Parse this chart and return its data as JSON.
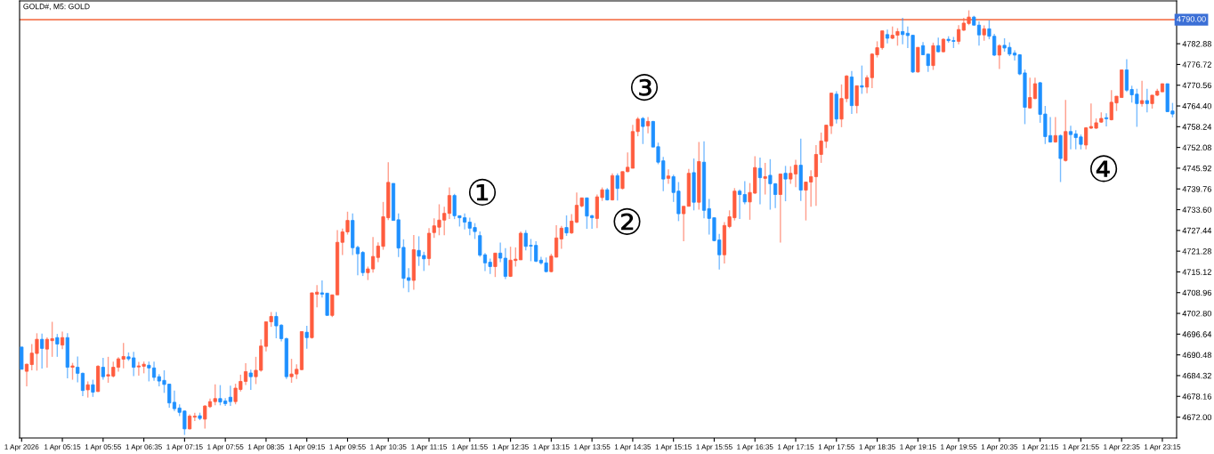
{
  "chart_data": {
    "type": "candlestick",
    "title": "GOLD#, M5: GOLD",
    "x": [
      "2026-04-01T04:35",
      "2026-04-01T04:40",
      "2026-04-01T04:45",
      "2026-04-01T04:50",
      "2026-04-01T04:55",
      "2026-04-01T05:00",
      "2026-04-01T05:05",
      "2026-04-01T05:10",
      "2026-04-01T05:15",
      "2026-04-01T05:20",
      "2026-04-01T05:25",
      "2026-04-01T05:30",
      "2026-04-01T05:35",
      "2026-04-01T05:40",
      "2026-04-01T05:45",
      "2026-04-01T05:50",
      "2026-04-01T05:55",
      "2026-04-01T06:00",
      "2026-04-01T06:05",
      "2026-04-01T06:10",
      "2026-04-01T06:15",
      "2026-04-01T06:20",
      "2026-04-01T06:25",
      "2026-04-01T06:30",
      "2026-04-01T06:35",
      "2026-04-01T06:40",
      "2026-04-01T06:45",
      "2026-04-01T06:50",
      "2026-04-01T06:55",
      "2026-04-01T07:00",
      "2026-04-01T07:05",
      "2026-04-01T07:10",
      "2026-04-01T07:15",
      "2026-04-01T07:20",
      "2026-04-01T07:25",
      "2026-04-01T07:30",
      "2026-04-01T07:35",
      "2026-04-01T07:40",
      "2026-04-01T07:45",
      "2026-04-01T07:50",
      "2026-04-01T07:55",
      "2026-04-01T08:00",
      "2026-04-01T08:05",
      "2026-04-01T08:10",
      "2026-04-01T08:15",
      "2026-04-01T08:20",
      "2026-04-01T08:25",
      "2026-04-01T08:30",
      "2026-04-01T08:35",
      "2026-04-01T08:40",
      "2026-04-01T08:45",
      "2026-04-01T08:50",
      "2026-04-01T08:55",
      "2026-04-01T09:00",
      "2026-04-01T09:05",
      "2026-04-01T09:10",
      "2026-04-01T09:15",
      "2026-04-01T09:20",
      "2026-04-01T09:25",
      "2026-04-01T09:30",
      "2026-04-01T09:35",
      "2026-04-01T09:40",
      "2026-04-01T09:45",
      "2026-04-01T09:50",
      "2026-04-01T09:55",
      "2026-04-01T10:00",
      "2026-04-01T10:05",
      "2026-04-01T10:10",
      "2026-04-01T10:15",
      "2026-04-01T10:20",
      "2026-04-01T10:25",
      "2026-04-01T10:30",
      "2026-04-01T10:35",
      "2026-04-01T10:40",
      "2026-04-01T10:45",
      "2026-04-01T10:50",
      "2026-04-01T10:55",
      "2026-04-01T11:00",
      "2026-04-01T11:05",
      "2026-04-01T11:10",
      "2026-04-01T11:15",
      "2026-04-01T11:20",
      "2026-04-01T11:25",
      "2026-04-01T11:30",
      "2026-04-01T11:35",
      "2026-04-01T11:40",
      "2026-04-01T11:45",
      "2026-04-01T11:50",
      "2026-04-01T11:55",
      "2026-04-01T12:00",
      "2026-04-01T12:05",
      "2026-04-01T12:10",
      "2026-04-01T12:15",
      "2026-04-01T12:20",
      "2026-04-01T12:25",
      "2026-04-01T12:30",
      "2026-04-01T12:35",
      "2026-04-01T12:40",
      "2026-04-01T12:45",
      "2026-04-01T12:50",
      "2026-04-01T12:55",
      "2026-04-01T13:00",
      "2026-04-01T13:05",
      "2026-04-01T13:10",
      "2026-04-01T13:15",
      "2026-04-01T13:20",
      "2026-04-01T13:25",
      "2026-04-01T13:30",
      "2026-04-01T13:35",
      "2026-04-01T13:40",
      "2026-04-01T13:45",
      "2026-04-01T13:50",
      "2026-04-01T13:55",
      "2026-04-01T14:00",
      "2026-04-01T14:05",
      "2026-04-01T14:10",
      "2026-04-01T14:15",
      "2026-04-01T14:20",
      "2026-04-01T14:25",
      "2026-04-01T14:30",
      "2026-04-01T14:35",
      "2026-04-01T14:40",
      "2026-04-01T14:45",
      "2026-04-01T14:50",
      "2026-04-01T14:55",
      "2026-04-01T15:00",
      "2026-04-01T15:05",
      "2026-04-01T15:10",
      "2026-04-01T15:15",
      "2026-04-01T15:20",
      "2026-04-01T15:25",
      "2026-04-01T15:30",
      "2026-04-01T15:35",
      "2026-04-01T15:40",
      "2026-04-01T15:45",
      "2026-04-01T15:50",
      "2026-04-01T15:55",
      "2026-04-01T16:00",
      "2026-04-01T16:05",
      "2026-04-01T16:10",
      "2026-04-01T16:15",
      "2026-04-01T16:20",
      "2026-04-01T16:25",
      "2026-04-01T16:30",
      "2026-04-01T16:35",
      "2026-04-01T16:40",
      "2026-04-01T16:45",
      "2026-04-01T16:50",
      "2026-04-01T16:55",
      "2026-04-01T17:00",
      "2026-04-01T17:05",
      "2026-04-01T17:10",
      "2026-04-01T17:15",
      "2026-04-01T17:20",
      "2026-04-01T17:25",
      "2026-04-01T17:30",
      "2026-04-01T17:35",
      "2026-04-01T17:40",
      "2026-04-01T17:45",
      "2026-04-01T17:50",
      "2026-04-01T17:55",
      "2026-04-01T18:00",
      "2026-04-01T18:05",
      "2026-04-01T18:10",
      "2026-04-01T18:15",
      "2026-04-01T18:20",
      "2026-04-01T18:25",
      "2026-04-01T18:30",
      "2026-04-01T18:35",
      "2026-04-01T18:40",
      "2026-04-01T18:45",
      "2026-04-01T18:50",
      "2026-04-01T18:55",
      "2026-04-01T19:00",
      "2026-04-01T19:05",
      "2026-04-01T19:10",
      "2026-04-01T19:15",
      "2026-04-01T19:20",
      "2026-04-01T19:25",
      "2026-04-01T19:30",
      "2026-04-01T19:35",
      "2026-04-01T19:40",
      "2026-04-01T19:45",
      "2026-04-01T19:50",
      "2026-04-01T19:55",
      "2026-04-01T20:00",
      "2026-04-01T20:05",
      "2026-04-01T20:10",
      "2026-04-01T20:15",
      "2026-04-01T20:20",
      "2026-04-01T20:25",
      "2026-04-01T20:30",
      "2026-04-01T20:35",
      "2026-04-01T20:40",
      "2026-04-01T20:45",
      "2026-04-01T20:50",
      "2026-04-01T20:55",
      "2026-04-01T21:00",
      "2026-04-01T21:05",
      "2026-04-01T21:10",
      "2026-04-01T21:15",
      "2026-04-01T21:20",
      "2026-04-01T21:25",
      "2026-04-01T21:30",
      "2026-04-01T21:35",
      "2026-04-01T21:40",
      "2026-04-01T21:45",
      "2026-04-01T21:50",
      "2026-04-01T21:55",
      "2026-04-01T22:00",
      "2026-04-01T22:05",
      "2026-04-01T22:10",
      "2026-04-01T22:15",
      "2026-04-01T22:20",
      "2026-04-01T22:25",
      "2026-04-01T22:30",
      "2026-04-01T22:35",
      "2026-04-01T22:40",
      "2026-04-01T22:45",
      "2026-04-01T22:50",
      "2026-04-01T22:55",
      "2026-04-01T23:00",
      "2026-04-01T23:05",
      "2026-04-01T23:10",
      "2026-04-01T23:15",
      "2026-04-01T23:20",
      "2026-04-01T23:25"
    ],
    "ohlc": [
      [
        4692.8,
        4692.8,
        4686.2,
        4686.2
      ],
      [
        4685.6,
        4687.9,
        4681.1,
        4687.7
      ],
      [
        4687.6,
        4693.7,
        4685.9,
        4691.0
      ],
      [
        4690.9,
        4696.9,
        4685.8,
        4695.1
      ],
      [
        4695.1,
        4696.8,
        4686.4,
        4692.4
      ],
      [
        4692.2,
        4695.7,
        4686.7,
        4695.1
      ],
      [
        4694.7,
        4700.3,
        4689.9,
        4695.3
      ],
      [
        4695.6,
        4696.7,
        4689.9,
        4693.7
      ],
      [
        4693.4,
        4697.4,
        4692.2,
        4695.6
      ],
      [
        4695.6,
        4696.9,
        4683.5,
        4686.8
      ],
      [
        4686.8,
        4688.1,
        4683.1,
        4687.2
      ],
      [
        4686.8,
        4690.0,
        4682.3,
        4685.0
      ],
      [
        4685.0,
        4685.2,
        4678.2,
        4679.9
      ],
      [
        4680.1,
        4682.6,
        4677.8,
        4681.6
      ],
      [
        4681.6,
        4683.1,
        4678.0,
        4679.4
      ],
      [
        4679.6,
        4687.4,
        4679.5,
        4687.1
      ],
      [
        4686.8,
        4689.6,
        4683.1,
        4684.0
      ],
      [
        4684.2,
        4689.9,
        4682.2,
        4684.6
      ],
      [
        4684.2,
        4688.5,
        4683.8,
        4686.8
      ],
      [
        4686.8,
        4689.8,
        4685.5,
        4689.3
      ],
      [
        4689.2,
        4694.0,
        4686.5,
        4690.0
      ],
      [
        4689.9,
        4691.2,
        4688.7,
        4689.3
      ],
      [
        4689.6,
        4691.4,
        4684.2,
        4686.8
      ],
      [
        4686.9,
        4688.4,
        4684.3,
        4687.2
      ],
      [
        4687.1,
        4688.5,
        4685.0,
        4687.7
      ],
      [
        4687.4,
        4688.5,
        4682.6,
        4686.6
      ],
      [
        4686.6,
        4688.5,
        4682.8,
        4683.8
      ],
      [
        4684.0,
        4684.8,
        4681.1,
        4682.7
      ],
      [
        4682.9,
        4685.9,
        4679.2,
        4681.7
      ],
      [
        4681.8,
        4681.9,
        4674.8,
        4676.2
      ],
      [
        4676.4,
        4679.9,
        4673.8,
        4674.5
      ],
      [
        4674.7,
        4675.8,
        4672.3,
        4673.4
      ],
      [
        4673.8,
        4674.0,
        4666.7,
        4668.5
      ],
      [
        4668.5,
        4672.8,
        4668.3,
        4672.3
      ],
      [
        4672.0,
        4673.3,
        4670.8,
        4672.3
      ],
      [
        4672.4,
        4673.3,
        4671.1,
        4671.6
      ],
      [
        4671.4,
        4675.5,
        4668.6,
        4675.3
      ],
      [
        4675.1,
        4677.5,
        4674.7,
        4676.6
      ],
      [
        4676.6,
        4681.7,
        4675.5,
        4677.5
      ],
      [
        4677.5,
        4681.5,
        4675.5,
        4676.5
      ],
      [
        4676.8,
        4677.6,
        4675.3,
        4676.0
      ],
      [
        4677.9,
        4681.3,
        4675.3,
        4676.6
      ],
      [
        4676.6,
        4681.9,
        4675.8,
        4680.6
      ],
      [
        4680.2,
        4684.6,
        4679.6,
        4682.6
      ],
      [
        4682.6,
        4688.0,
        4681.5,
        4685.5
      ],
      [
        4685.1,
        4686.1,
        4680.1,
        4684.0
      ],
      [
        4684.0,
        4689.9,
        4681.8,
        4685.9
      ],
      [
        4685.9,
        4695.1,
        4685.5,
        4693.1
      ],
      [
        4693.0,
        4700.3,
        4691.5,
        4700.3
      ],
      [
        4700.3,
        4703.2,
        4698.8,
        4701.9
      ],
      [
        4701.9,
        4703.2,
        4695.4,
        4699.1
      ],
      [
        4699.3,
        4699.6,
        4694.5,
        4695.3
      ],
      [
        4695.3,
        4695.6,
        4683.3,
        4684.0
      ],
      [
        4684.0,
        4689.3,
        4682.2,
        4684.8
      ],
      [
        4684.8,
        4687.7,
        4683.3,
        4686.2
      ],
      [
        4686.1,
        4697.4,
        4685.9,
        4697.4
      ],
      [
        4697.2,
        4699.1,
        4692.3,
        4695.6
      ],
      [
        4695.6,
        4708.9,
        4695.3,
        4708.9
      ],
      [
        4708.5,
        4711.2,
        4704.6,
        4709.1
      ],
      [
        4708.9,
        4712.6,
        4707.5,
        4708.5
      ],
      [
        4708.8,
        4708.8,
        4702.2,
        4702.2
      ],
      [
        4702.2,
        4708.3,
        4701.7,
        4708.3
      ],
      [
        4708.3,
        4727.5,
        4708.3,
        4723.9
      ],
      [
        4723.9,
        4728.0,
        4720.1,
        4727.0
      ],
      [
        4727.0,
        4733.0,
        4726.2,
        4730.4
      ],
      [
        4730.4,
        4732.5,
        4720.1,
        4722.3
      ],
      [
        4722.4,
        4722.9,
        4714.1,
        4720.5
      ],
      [
        4720.9,
        4721.3,
        4713.9,
        4714.9
      ],
      [
        4714.9,
        4716.7,
        4712.7,
        4716.0
      ],
      [
        4716.0,
        4725.5,
        4714.9,
        4719.7
      ],
      [
        4719.4,
        4723.9,
        4718.0,
        4722.8
      ],
      [
        4722.7,
        4735.9,
        4721.7,
        4731.5
      ],
      [
        4731.2,
        4747.7,
        4730.5,
        4741.7
      ],
      [
        4741.4,
        4741.4,
        4730.4,
        4730.4
      ],
      [
        4730.6,
        4732.5,
        4719.5,
        4722.2
      ],
      [
        4722.4,
        4724.8,
        4710.3,
        4713.2
      ],
      [
        4713.4,
        4716.2,
        4709.1,
        4712.6
      ],
      [
        4712.6,
        4726.1,
        4709.8,
        4721.7
      ],
      [
        4721.5,
        4725.7,
        4716.9,
        4719.8
      ],
      [
        4720.0,
        4721.1,
        4715.4,
        4719.0
      ],
      [
        4719.1,
        4728.1,
        4717.0,
        4726.6
      ],
      [
        4726.8,
        4731.0,
        4725.2,
        4728.8
      ],
      [
        4728.4,
        4735.2,
        4726.0,
        4730.5
      ],
      [
        4730.5,
        4734.5,
        4726.0,
        4732.5
      ],
      [
        4732.5,
        4740.2,
        4730.8,
        4737.8
      ],
      [
        4737.8,
        4738.3,
        4730.8,
        4731.8
      ],
      [
        4731.8,
        4731.8,
        4728.6,
        4731.2
      ],
      [
        4731.2,
        4732.5,
        4727.7,
        4729.9
      ],
      [
        4729.9,
        4731.2,
        4726.0,
        4728.1
      ],
      [
        4728.3,
        4729.6,
        4724.9,
        4727.1
      ],
      [
        4725.9,
        4727.1,
        4719.6,
        4720.1
      ],
      [
        4720.2,
        4720.7,
        4715.4,
        4717.8
      ],
      [
        4718.0,
        4719.1,
        4714.5,
        4716.7
      ],
      [
        4716.7,
        4720.7,
        4713.6,
        4720.7
      ],
      [
        4720.7,
        4723.8,
        4718.0,
        4719.2
      ],
      [
        4719.2,
        4722.2,
        4713.0,
        4713.8
      ],
      [
        4713.8,
        4722.6,
        4713.6,
        4718.6
      ],
      [
        4718.5,
        4722.4,
        4716.7,
        4718.9
      ],
      [
        4718.7,
        4727.1,
        4718.7,
        4726.6
      ],
      [
        4726.6,
        4727.5,
        4721.5,
        4722.7
      ],
      [
        4723.0,
        4724.9,
        4718.3,
        4722.8
      ],
      [
        4723.0,
        4724.2,
        4718.0,
        4718.3
      ],
      [
        4718.6,
        4719.6,
        4717.3,
        4717.8
      ],
      [
        4717.8,
        4719.4,
        4715.0,
        4715.2
      ],
      [
        4715.2,
        4720.5,
        4715.0,
        4719.8
      ],
      [
        4719.5,
        4729.0,
        4719.4,
        4725.2
      ],
      [
        4724.9,
        4728.8,
        4722.0,
        4728.1
      ],
      [
        4728.3,
        4731.9,
        4725.8,
        4726.7
      ],
      [
        4726.7,
        4732.3,
        4726.4,
        4730.2
      ],
      [
        4729.9,
        4738.7,
        4729.6,
        4734.9
      ],
      [
        4734.7,
        4737.1,
        4734.3,
        4737.1
      ],
      [
        4737.1,
        4737.1,
        4727.9,
        4731.7
      ],
      [
        4731.8,
        4732.1,
        4727.9,
        4731.2
      ],
      [
        4731.0,
        4738.1,
        4728.1,
        4737.4
      ],
      [
        4737.2,
        4740.2,
        4736.2,
        4739.5
      ],
      [
        4739.5,
        4740.0,
        4736.3,
        4736.5
      ],
      [
        4736.5,
        4744.4,
        4736.3,
        4743.7
      ],
      [
        4743.7,
        4744.4,
        4736.3,
        4739.9
      ],
      [
        4739.9,
        4744.9,
        4739.6,
        4744.9
      ],
      [
        4744.9,
        4750.6,
        4744.7,
        4746.2
      ],
      [
        4745.9,
        4758.8,
        4745.9,
        4756.8
      ],
      [
        4756.8,
        4761.1,
        4755.4,
        4760.5
      ],
      [
        4760.7,
        4761.1,
        4753.1,
        4758.3
      ],
      [
        4758.5,
        4761.1,
        4756.3,
        4759.8
      ],
      [
        4759.8,
        4760.0,
        4752.2,
        4752.2
      ],
      [
        4752.3,
        4753.5,
        4747.1,
        4747.7
      ],
      [
        4748.1,
        4749.3,
        4739.1,
        4742.7
      ],
      [
        4742.9,
        4745.6,
        4741.3,
        4743.6
      ],
      [
        4743.4,
        4744.0,
        4735.9,
        4738.7
      ],
      [
        4739.1,
        4741.8,
        4730.2,
        4732.4
      ],
      [
        4732.4,
        4734.6,
        4724.2,
        4734.6
      ],
      [
        4734.6,
        4745.7,
        4734.6,
        4744.4
      ],
      [
        4744.6,
        4748.8,
        4733.4,
        4735.8
      ],
      [
        4735.8,
        4753.7,
        4733.6,
        4747.9
      ],
      [
        4747.7,
        4753.9,
        4731.0,
        4733.4
      ],
      [
        4733.9,
        4736.8,
        4726.2,
        4731.0
      ],
      [
        4731.2,
        4731.2,
        4724.2,
        4724.4
      ],
      [
        4724.6,
        4726.4,
        4715.8,
        4720.2
      ],
      [
        4720.2,
        4729.9,
        4717.6,
        4728.9
      ],
      [
        4728.6,
        4733.4,
        4728.1,
        4731.5
      ],
      [
        4731.2,
        4740.0,
        4730.4,
        4739.1
      ],
      [
        4739.1,
        4739.6,
        4730.8,
        4738.1
      ],
      [
        4738.1,
        4742.1,
        4735.2,
        4735.9
      ],
      [
        4735.9,
        4741.5,
        4730.6,
        4738.7
      ],
      [
        4738.5,
        4749.5,
        4738.3,
        4746.1
      ],
      [
        4745.9,
        4749.1,
        4735.2,
        4743.1
      ],
      [
        4742.9,
        4747.5,
        4738.1,
        4743.4
      ],
      [
        4743.8,
        4748.6,
        4733.6,
        4741.3
      ],
      [
        4741.3,
        4741.5,
        4734.1,
        4738.1
      ],
      [
        4738.1,
        4744.2,
        4723.8,
        4744.2
      ],
      [
        4744.4,
        4746.6,
        4736.1,
        4742.7
      ],
      [
        4742.7,
        4746.5,
        4741.3,
        4744.4
      ],
      [
        4744.2,
        4748.4,
        4740.3,
        4746.8
      ],
      [
        4746.8,
        4754.7,
        4736.2,
        4739.4
      ],
      [
        4739.4,
        4741.8,
        4730.4,
        4741.8
      ],
      [
        4741.8,
        4745.3,
        4734.5,
        4743.4
      ],
      [
        4743.4,
        4752.8,
        4734.7,
        4750.0
      ],
      [
        4750.0,
        4756.5,
        4747.5,
        4754.0
      ],
      [
        4753.9,
        4758.7,
        4751.9,
        4758.7
      ],
      [
        4758.5,
        4768.4,
        4756.1,
        4768.2
      ],
      [
        4767.9,
        4768.8,
        4759.2,
        4760.5
      ],
      [
        4760.5,
        4770.8,
        4758.1,
        4766.6
      ],
      [
        4766.6,
        4773.5,
        4765.5,
        4773.3
      ],
      [
        4773.0,
        4774.8,
        4762.0,
        4764.5
      ],
      [
        4764.5,
        4770.4,
        4762.2,
        4770.4
      ],
      [
        4770.4,
        4776.4,
        4768.0,
        4770.0
      ],
      [
        4770.0,
        4773.5,
        4768.2,
        4772.8
      ],
      [
        4772.8,
        4780.1,
        4769.7,
        4779.8
      ],
      [
        4779.6,
        4783.6,
        4778.8,
        4781.7
      ],
      [
        4781.7,
        4786.7,
        4781.1,
        4786.7
      ],
      [
        4785.6,
        4787.1,
        4783.0,
        4784.5
      ],
      [
        4784.5,
        4788.0,
        4784.2,
        4785.4
      ],
      [
        4785.4,
        4787.5,
        4782.3,
        4786.5
      ],
      [
        4786.5,
        4790.6,
        4782.7,
        4785.6
      ],
      [
        4786.0,
        4788.0,
        4781.6,
        4785.3
      ],
      [
        4785.4,
        4785.4,
        4774.2,
        4774.5
      ],
      [
        4774.5,
        4781.8,
        4774.3,
        4781.8
      ],
      [
        4782.3,
        4783.4,
        4779.5,
        4779.6
      ],
      [
        4779.8,
        4779.8,
        4774.5,
        4776.4
      ],
      [
        4776.4,
        4783.2,
        4775.1,
        4782.3
      ],
      [
        4782.3,
        4784.7,
        4780.3,
        4780.5
      ],
      [
        4780.5,
        4784.5,
        4780.3,
        4784.2
      ],
      [
        4784.2,
        4785.1,
        4783.2,
        4783.8
      ],
      [
        4783.8,
        4784.9,
        4781.6,
        4783.6
      ],
      [
        4783.6,
        4788.4,
        4782.7,
        4787.1
      ],
      [
        4786.9,
        4790.6,
        4786.7,
        4789.0
      ],
      [
        4788.9,
        4792.8,
        4788.4,
        4790.8
      ],
      [
        4790.8,
        4791.2,
        4788.3,
        4788.4
      ],
      [
        4788.4,
        4789.5,
        4782.3,
        4785.5
      ],
      [
        4785.5,
        4788.3,
        4783.8,
        4787.3
      ],
      [
        4787.3,
        4789.8,
        4784.2,
        4785.1
      ],
      [
        4785.1,
        4785.8,
        4779.2,
        4779.5
      ],
      [
        4779.5,
        4782.7,
        4775.4,
        4782.3
      ],
      [
        4782.4,
        4784.5,
        4780.5,
        4781.6
      ],
      [
        4781.8,
        4783.3,
        4779.2,
        4779.8
      ],
      [
        4780.1,
        4780.9,
        4777.9,
        4779.5
      ],
      [
        4779.6,
        4779.8,
        4773.5,
        4773.9
      ],
      [
        4774.2,
        4775.2,
        4759.0,
        4764.0
      ],
      [
        4763.8,
        4772.8,
        4763.6,
        4766.9
      ],
      [
        4766.6,
        4772.8,
        4766.4,
        4771.0
      ],
      [
        4771.3,
        4771.5,
        4759.4,
        4761.9
      ],
      [
        4762.0,
        4764.4,
        4753.1,
        4755.3
      ],
      [
        4755.6,
        4761.1,
        4753.5,
        4753.7
      ],
      [
        4753.7,
        4761.1,
        4753.5,
        4755.6
      ],
      [
        4755.6,
        4755.9,
        4741.8,
        4748.8
      ],
      [
        4748.2,
        4766.2,
        4747.9,
        4756.8
      ],
      [
        4756.8,
        4758.5,
        4751.5,
        4755.9
      ],
      [
        4756.1,
        4757.2,
        4751.5,
        4755.0
      ],
      [
        4755.2,
        4755.9,
        4751.5,
        4753.0
      ],
      [
        4752.8,
        4758.1,
        4751.5,
        4757.9
      ],
      [
        4757.8,
        4765.1,
        4757.6,
        4758.3
      ],
      [
        4757.8,
        4760.7,
        4757.6,
        4759.4
      ],
      [
        4759.6,
        4762.5,
        4759.4,
        4760.7
      ],
      [
        4760.9,
        4762.2,
        4758.3,
        4760.6
      ],
      [
        4760.3,
        4769.1,
        4760.1,
        4765.5
      ],
      [
        4765.3,
        4767.3,
        4762.9,
        4767.3
      ],
      [
        4766.9,
        4775.1,
        4766.9,
        4775.1
      ],
      [
        4775.1,
        4778.3,
        4768.6,
        4769.1
      ],
      [
        4769.3,
        4770.4,
        4765.4,
        4767.7
      ],
      [
        4767.9,
        4769.5,
        4758.2,
        4765.1
      ],
      [
        4765.1,
        4771.9,
        4764.2,
        4766.0
      ],
      [
        4766.0,
        4769.5,
        4762.5,
        4765.1
      ],
      [
        4765.1,
        4767.6,
        4763.6,
        4767.6
      ],
      [
        4767.6,
        4769.5,
        4767.3,
        4768.8
      ],
      [
        4768.6,
        4771.0,
        4768.6,
        4771.0
      ],
      [
        4771.0,
        4771.0,
        4762.7,
        4762.7
      ],
      [
        4762.9,
        4765.3,
        4761.0,
        4762.0
      ]
    ],
    "colors": [
      "#1e90ff",
      "#ff5c3e",
      "#ff5c3e",
      "#ff5c3e",
      "#1e90ff",
      "#ff5c3e",
      "#ff5c3e",
      "#1e90ff",
      "#ff5c3e",
      "#1e90ff",
      "#ff5c3e",
      "#1e90ff",
      "#1e90ff",
      "#ff5c3e",
      "#1e90ff",
      "#ff5c3e",
      "#1e90ff",
      "#ff5c3e",
      "#ff5c3e",
      "#ff5c3e",
      "#ff5c3e",
      "#1e90ff",
      "#1e90ff",
      "#ff5c3e",
      "#ff5c3e",
      "#1e90ff",
      "#1e90ff",
      "#1e90ff",
      "#1e90ff",
      "#1e90ff",
      "#1e90ff",
      "#1e90ff",
      "#1e90ff",
      "#ff5c3e",
      "#ff5c3e",
      "#1e90ff",
      "#ff5c3e",
      "#ff5c3e",
      "#ff5c3e",
      "#1e90ff",
      "#1e90ff",
      "#1e90ff",
      "#ff5c3e",
      "#ff5c3e",
      "#ff5c3e",
      "#1e90ff",
      "#ff5c3e",
      "#ff5c3e",
      "#ff5c3e",
      "#ff5c3e",
      "#1e90ff",
      "#1e90ff",
      "#1e90ff",
      "#ff5c3e",
      "#ff5c3e",
      "#ff5c3e",
      "#1e90ff",
      "#ff5c3e",
      "#ff5c3e",
      "#1e90ff",
      "#1e90ff",
      "#ff5c3e",
      "#ff5c3e",
      "#ff5c3e",
      "#ff5c3e",
      "#1e90ff",
      "#1e90ff",
      "#1e90ff",
      "#ff5c3e",
      "#ff5c3e",
      "#ff5c3e",
      "#ff5c3e",
      "#ff5c3e",
      "#1e90ff",
      "#1e90ff",
      "#1e90ff",
      "#1e90ff",
      "#ff5c3e",
      "#1e90ff",
      "#1e90ff",
      "#ff5c3e",
      "#ff5c3e",
      "#ff5c3e",
      "#ff5c3e",
      "#ff5c3e",
      "#1e90ff",
      "#1e90ff",
      "#1e90ff",
      "#1e90ff",
      "#1e90ff",
      "#1e90ff",
      "#1e90ff",
      "#1e90ff",
      "#ff5c3e",
      "#1e90ff",
      "#1e90ff",
      "#ff5c3e",
      "#ff5c3e",
      "#ff5c3e",
      "#1e90ff",
      "#1e90ff",
      "#1e90ff",
      "#1e90ff",
      "#1e90ff",
      "#ff5c3e",
      "#ff5c3e",
      "#ff5c3e",
      "#1e90ff",
      "#ff5c3e",
      "#ff5c3e",
      "#ff5c3e",
      "#1e90ff",
      "#1e90ff",
      "#ff5c3e",
      "#ff5c3e",
      "#1e90ff",
      "#ff5c3e",
      "#1e90ff",
      "#ff5c3e",
      "#ff5c3e",
      "#ff5c3e",
      "#ff5c3e",
      "#1e90ff",
      "#ff5c3e",
      "#1e90ff",
      "#1e90ff",
      "#1e90ff",
      "#ff5c3e",
      "#1e90ff",
      "#1e90ff",
      "#ff5c3e",
      "#ff5c3e",
      "#1e90ff",
      "#ff5c3e",
      "#1e90ff",
      "#1e90ff",
      "#1e90ff",
      "#1e90ff",
      "#ff5c3e",
      "#ff5c3e",
      "#ff5c3e",
      "#1e90ff",
      "#1e90ff",
      "#ff5c3e",
      "#ff5c3e",
      "#1e90ff",
      "#ff5c3e",
      "#1e90ff",
      "#1e90ff",
      "#ff5c3e",
      "#1e90ff",
      "#ff5c3e",
      "#ff5c3e",
      "#1e90ff",
      "#ff5c3e",
      "#ff5c3e",
      "#ff5c3e",
      "#ff5c3e",
      "#ff5c3e",
      "#ff5c3e",
      "#1e90ff",
      "#ff5c3e",
      "#ff5c3e",
      "#1e90ff",
      "#ff5c3e",
      "#1e90ff",
      "#ff5c3e",
      "#ff5c3e",
      "#ff5c3e",
      "#ff5c3e",
      "#1e90ff",
      "#ff5c3e",
      "#ff5c3e",
      "#1e90ff",
      "#1e90ff",
      "#1e90ff",
      "#ff5c3e",
      "#1e90ff",
      "#1e90ff",
      "#ff5c3e",
      "#1e90ff",
      "#ff5c3e",
      "#1e90ff",
      "#1e90ff",
      "#ff5c3e",
      "#ff5c3e",
      "#ff5c3e",
      "#1e90ff",
      "#1e90ff",
      "#ff5c3e",
      "#1e90ff",
      "#1e90ff",
      "#ff5c3e",
      "#1e90ff",
      "#1e90ff",
      "#1e90ff",
      "#1e90ff",
      "#1e90ff",
      "#ff5c3e",
      "#ff5c3e",
      "#1e90ff",
      "#1e90ff",
      "#1e90ff",
      "#ff5c3e",
      "#1e90ff",
      "#ff5c3e",
      "#1e90ff",
      "#1e90ff",
      "#1e90ff",
      "#ff5c3e",
      "#ff5c3e",
      "#ff5c3e",
      "#ff5c3e",
      "#1e90ff",
      "#ff5c3e",
      "#ff5c3e",
      "#ff5c3e",
      "#1e90ff",
      "#1e90ff",
      "#1e90ff",
      "#ff5c3e",
      "#1e90ff",
      "#ff5c3e",
      "#ff5c3e",
      "#ff5c3e",
      "#1e90ff",
      "#1e90ff"
    ],
    "xlim": [
      "2026-04-01T04:33",
      "2026-04-01T23:29"
    ],
    "xticks": [
      {
        "value": "2026-04-01T04:35",
        "label": "1 Apr 2026"
      },
      {
        "value": "2026-04-01T05:15",
        "label": "1 Apr 05:15"
      },
      {
        "value": "2026-04-01T05:55",
        "label": "1 Apr 05:55"
      },
      {
        "value": "2026-04-01T06:35",
        "label": "1 Apr 06:35"
      },
      {
        "value": "2026-04-01T07:15",
        "label": "1 Apr 07:15"
      },
      {
        "value": "2026-04-01T07:55",
        "label": "1 Apr 07:55"
      },
      {
        "value": "2026-04-01T08:35",
        "label": "1 Apr 08:35"
      },
      {
        "value": "2026-04-01T09:15",
        "label": "1 Apr 09:15"
      },
      {
        "value": "2026-04-01T09:55",
        "label": "1 Apr 09:55"
      },
      {
        "value": "2026-04-01T10:35",
        "label": "1 Apr 10:35"
      },
      {
        "value": "2026-04-01T11:15",
        "label": "1 Apr 11:15"
      },
      {
        "value": "2026-04-01T11:55",
        "label": "1 Apr 11:55"
      },
      {
        "value": "2026-04-01T12:35",
        "label": "1 Apr 12:35"
      },
      {
        "value": "2026-04-01T13:15",
        "label": "1 Apr 13:15"
      },
      {
        "value": "2026-04-01T13:55",
        "label": "1 Apr 13:55"
      },
      {
        "value": "2026-04-01T14:35",
        "label": "1 Apr 14:35"
      },
      {
        "value": "2026-04-01T15:15",
        "label": "1 Apr 15:15"
      },
      {
        "value": "2026-04-01T15:55",
        "label": "1 Apr 15:55"
      },
      {
        "value": "2026-04-01T16:35",
        "label": "1 Apr 16:35"
      },
      {
        "value": "2026-04-01T17:15",
        "label": "1 Apr 17:15"
      },
      {
        "value": "2026-04-01T17:55",
        "label": "1 Apr 17:55"
      },
      {
        "value": "2026-04-01T18:35",
        "label": "1 Apr 18:35"
      },
      {
        "value": "2026-04-01T19:15",
        "label": "1 Apr 19:15"
      },
      {
        "value": "2026-04-01T19:55",
        "label": "1 Apr 19:55"
      },
      {
        "value": "2026-04-01T20:35",
        "label": "1 Apr 20:35"
      },
      {
        "value": "2026-04-01T21:15",
        "label": "1 Apr 21:15"
      },
      {
        "value": "2026-04-01T21:55",
        "label": "1 Apr 21:55"
      },
      {
        "value": "2026-04-01T22:35",
        "label": "1 Apr 22:35"
      },
      {
        "value": "2026-04-01T23:15",
        "label": "1 Apr 23:15"
      }
    ],
    "ylim": [
      4665.8,
      4795.6
    ],
    "yticks": [
      {
        "value": 4672.0,
        "label": "4672.00"
      },
      {
        "value": 4678.16,
        "label": "4678.16"
      },
      {
        "value": 4684.32,
        "label": "4684.32"
      },
      {
        "value": 4690.48,
        "label": "4690.48"
      },
      {
        "value": 4696.64,
        "label": "4696.64"
      },
      {
        "value": 4702.8,
        "label": "4702.80"
      },
      {
        "value": 4708.96,
        "label": "4708.96"
      },
      {
        "value": 4715.12,
        "label": "4715.12"
      },
      {
        "value": 4721.28,
        "label": "4721.28"
      },
      {
        "value": 4727.44,
        "label": "4727.44"
      },
      {
        "value": 4733.6,
        "label": "4733.60"
      },
      {
        "value": 4739.76,
        "label": "4739.76"
      },
      {
        "value": 4745.92,
        "label": "4745.92"
      },
      {
        "value": 4752.08,
        "label": "4752.08"
      },
      {
        "value": 4758.24,
        "label": "4758.24"
      },
      {
        "value": 4764.4,
        "label": "4764.40"
      },
      {
        "value": 4770.56,
        "label": "4770.56"
      },
      {
        "value": 4776.72,
        "label": "4776.72"
      },
      {
        "value": 4782.88,
        "label": "4782.88"
      },
      {
        "value": 4789.04,
        "label": null
      }
    ],
    "ref_lines": [
      {
        "axis": "y",
        "value": 4790.0,
        "label": "4790.00",
        "color": "#f47a55"
      }
    ],
    "annotations": [
      "①",
      "②",
      "③",
      "④"
    ]
  }
}
